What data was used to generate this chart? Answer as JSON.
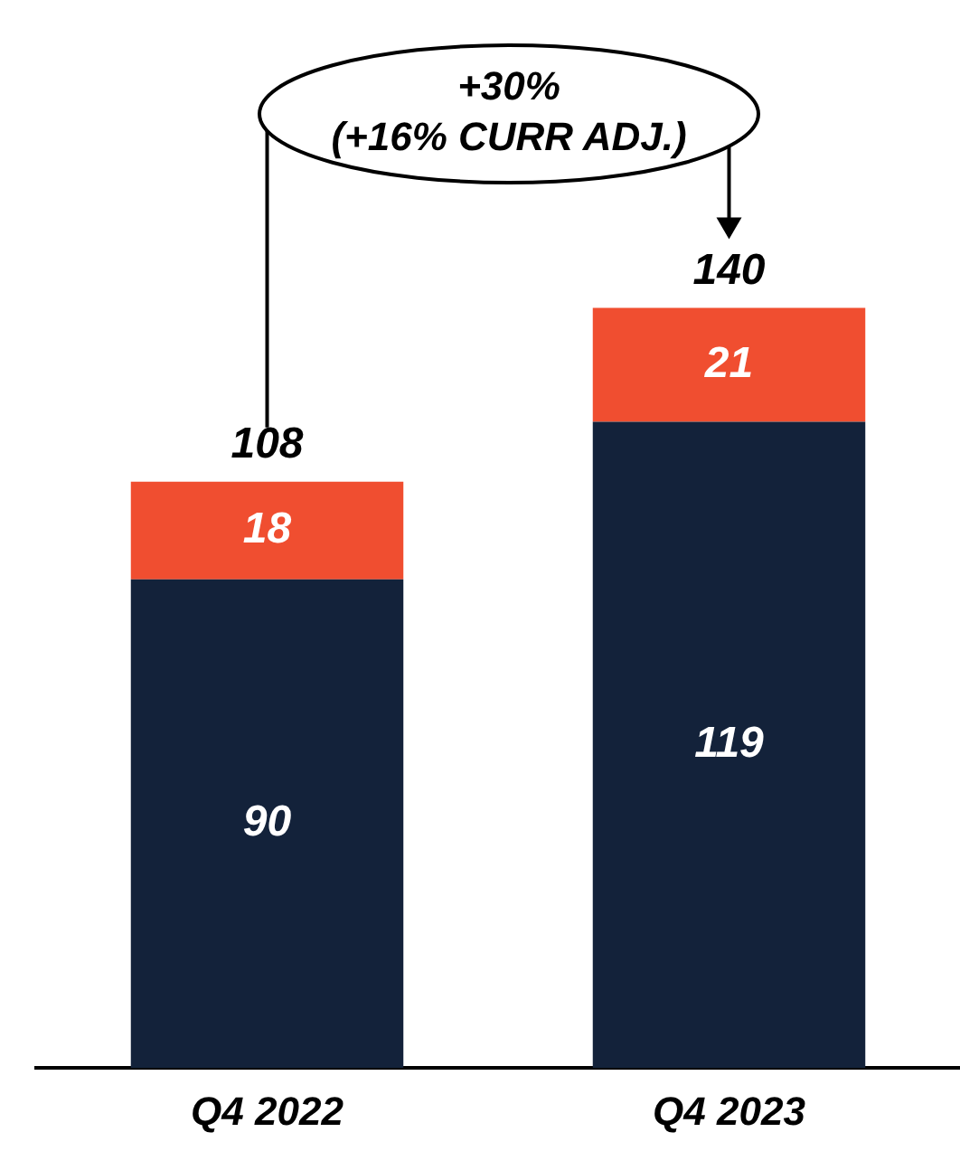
{
  "chart_data": {
    "type": "bar",
    "stacked": true,
    "categories": [
      "Q4 2022",
      "Q4 2023"
    ],
    "series": [
      {
        "color": "#13223a",
        "values": [
          90,
          119
        ]
      },
      {
        "color": "#f04e30",
        "values": [
          18,
          21
        ]
      }
    ],
    "data_labels": true,
    "totals": [
      "108",
      "140"
    ],
    "annotations": [
      "+30%",
      "(+16% CURR ADJ.)"
    ],
    "grid": false,
    "legend": false
  }
}
